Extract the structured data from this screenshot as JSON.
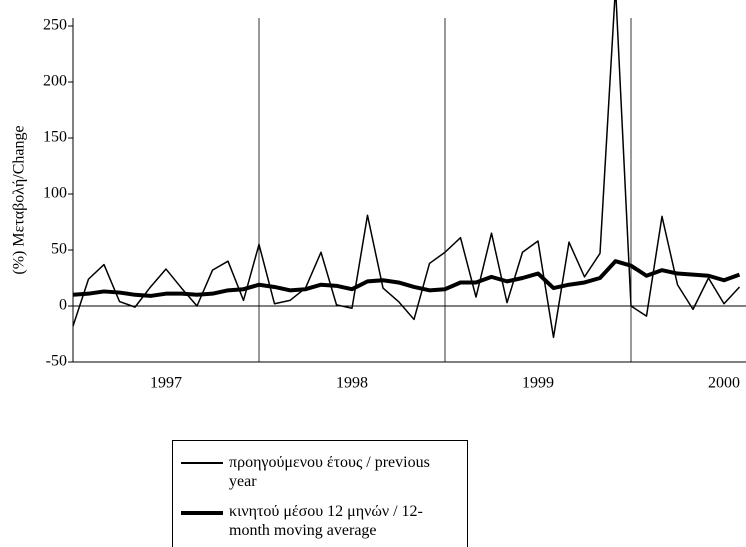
{
  "chart_data": {
    "type": "line",
    "y_label": "(%) Μεταβολή/Change",
    "categories": [
      null,
      null,
      null,
      null,
      null,
      null,
      "1997",
      null,
      null,
      null,
      null,
      null,
      null,
      null,
      null,
      null,
      null,
      null,
      "1998",
      null,
      null,
      null,
      null,
      null,
      null,
      null,
      null,
      null,
      null,
      null,
      "1999",
      null,
      null,
      null,
      null,
      null,
      null,
      null,
      null,
      null,
      null,
      null,
      "2000",
      null
    ],
    "series": [
      {
        "name": "προηγούμενου έτους / previous year",
        "color": "#000000",
        "width": 1.5,
        "values": [
          -18,
          24,
          37,
          4,
          -1,
          17,
          33,
          16,
          0,
          32,
          40,
          5,
          55,
          2,
          5,
          16,
          48,
          1,
          -2,
          81,
          16,
          4,
          -12,
          38,
          48,
          61,
          8,
          65,
          3,
          48,
          58,
          -28,
          57,
          26,
          47,
          285,
          0,
          -9,
          80,
          19,
          -3,
          25,
          2,
          17
        ]
      },
      {
        "name": "κινητού μέσου 12 μηνών / 12-month moving average",
        "color": "#000000",
        "width": 4,
        "values": [
          10,
          11,
          13,
          12,
          10,
          9,
          11,
          11,
          10,
          11,
          14,
          15,
          19,
          17,
          14,
          15,
          19,
          18,
          15,
          22,
          23,
          21,
          17,
          14,
          15,
          21,
          21,
          26,
          22,
          25,
          29,
          16,
          19,
          21,
          25,
          40,
          36,
          27,
          32,
          29,
          28,
          27,
          23,
          28
        ]
      }
    ],
    "ylim": [
      -50,
      250
    ],
    "yticks": [
      -50,
      0,
      50,
      100,
      150,
      200,
      250
    ]
  }
}
